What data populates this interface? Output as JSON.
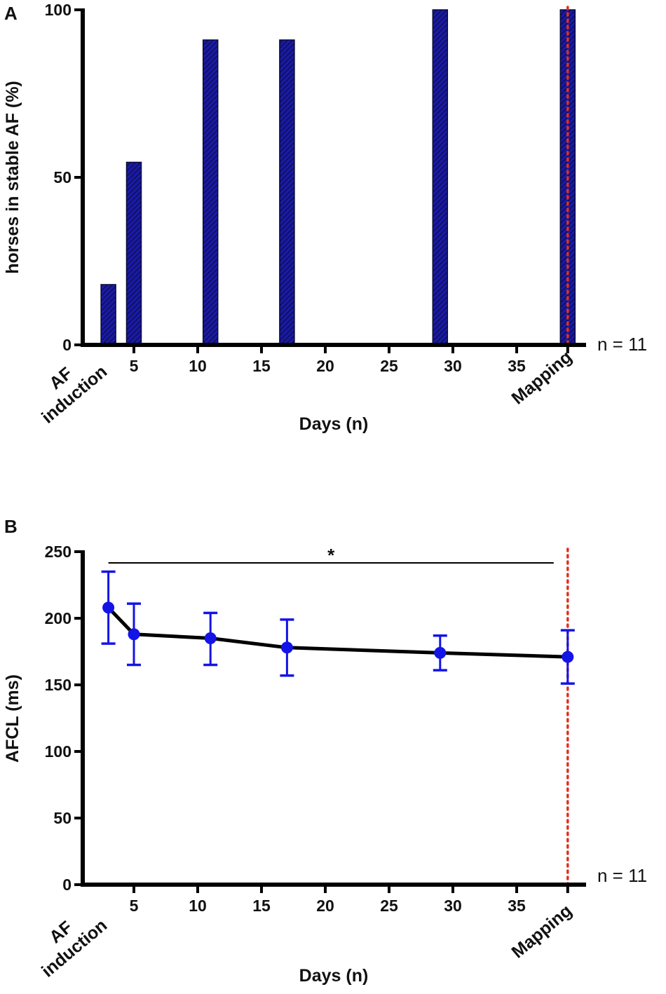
{
  "chart_data": [
    {
      "type": "bar",
      "panel": "A",
      "ylabel": "horses in stable AF (%)",
      "xlabel": "Days (n)",
      "ylim": [
        0,
        100
      ],
      "yticks": [
        0,
        50,
        100
      ],
      "xticks": [
        5,
        10,
        15,
        20,
        25,
        30,
        35
      ],
      "xlim": [
        0,
        40
      ],
      "x_start_label": [
        "AF",
        "induction"
      ],
      "x_end_label": "Mapping",
      "mapping_day": 39,
      "n_label": "n = 11",
      "bars": [
        {
          "day": 3,
          "value": 18
        },
        {
          "day": 5,
          "value": 54.5
        },
        {
          "day": 11,
          "value": 91
        },
        {
          "day": 17,
          "value": 91
        },
        {
          "day": 29,
          "value": 100
        },
        {
          "day": 39,
          "value": 100
        }
      ],
      "colors": {
        "bar": "#1a1aa6",
        "hatch": "#0b0b3a",
        "reference_line": "#e0301e"
      }
    },
    {
      "type": "line",
      "panel": "B",
      "ylabel": "AFCL (ms)",
      "xlabel": "Days (n)",
      "ylim": [
        0,
        250
      ],
      "yticks": [
        0,
        50,
        100,
        150,
        200,
        250
      ],
      "xticks": [
        5,
        10,
        15,
        20,
        25,
        30,
        35
      ],
      "xlim": [
        0,
        40
      ],
      "x_start_label": [
        "AF",
        "induction"
      ],
      "x_end_label": "Mapping",
      "mapping_day": 39,
      "n_label": "n = 11",
      "significance": {
        "label": "*",
        "from_day": 3,
        "to_day": 39
      },
      "points": [
        {
          "day": 3,
          "mean": 208,
          "lower": 181,
          "upper": 235
        },
        {
          "day": 5,
          "mean": 188,
          "lower": 165,
          "upper": 211
        },
        {
          "day": 11,
          "mean": 185,
          "lower": 165,
          "upper": 204
        },
        {
          "day": 17,
          "mean": 178,
          "lower": 157,
          "upper": 199
        },
        {
          "day": 29,
          "mean": 174,
          "lower": 161,
          "upper": 187
        },
        {
          "day": 39,
          "mean": 171,
          "lower": 151,
          "upper": 191
        }
      ],
      "colors": {
        "line": "#000000",
        "marker": "#1414e6",
        "errorbar": "#1414e6",
        "reference_line": "#e0301e"
      }
    }
  ]
}
